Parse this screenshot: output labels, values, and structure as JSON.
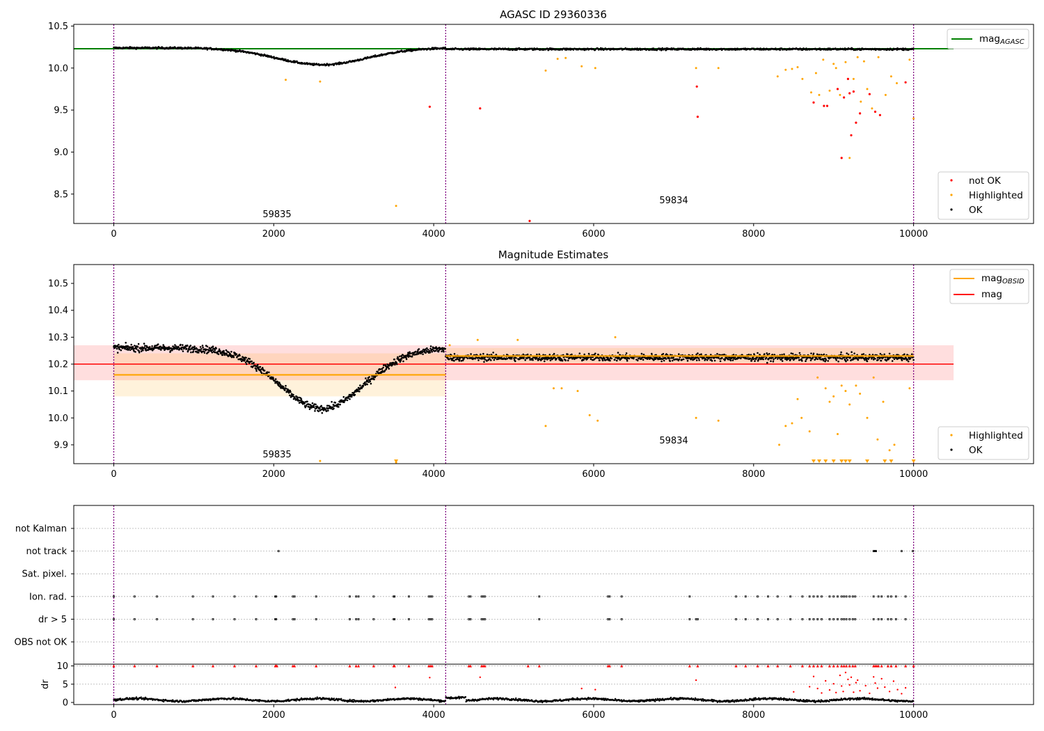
{
  "figure": {
    "colors": {
      "ok": "#000000",
      "highlighted": "#ffa500",
      "not_ok": "#ff0000",
      "mag_agasc": "#008000",
      "mag_obsid": "#ffa500",
      "mag": "#ff0000",
      "divider": "#800080"
    }
  },
  "chart_data": [
    {
      "type": "scatter",
      "title": "AGASC ID 29360336",
      "xlim": [
        -500,
        11500
      ],
      "ylim": [
        8.15,
        10.52
      ],
      "x_ticks": [
        "0",
        "2000",
        "4000",
        "6000",
        "8000",
        "10000"
      ],
      "y_ticks": [
        "8.5",
        "9.0",
        "9.5",
        "10.0",
        "10.5"
      ],
      "obsid_boundaries": [
        0,
        4150,
        10000
      ],
      "obsid_labels": [
        {
          "text": "59835",
          "x": 2070,
          "y": 8.26
        },
        {
          "text": "59834",
          "x": 7070,
          "y": 8.43
        }
      ],
      "lines": [
        {
          "name": "mag",
          "subscript": "AGASC",
          "y": 10.23,
          "x_range": [
            -500,
            10500
          ]
        }
      ],
      "series": [
        {
          "name": "not OK",
          "points": [
            [
              3950,
              9.54
            ],
            [
              4580,
              9.52
            ],
            [
              5200,
              8.18
            ],
            [
              7290,
              9.78
            ],
            [
              7300,
              9.42
            ],
            [
              8750,
              9.59
            ],
            [
              8880,
              9.55
            ],
            [
              8920,
              9.55
            ],
            [
              9050,
              9.75
            ],
            [
              9100,
              8.93
            ],
            [
              9130,
              9.65
            ],
            [
              9180,
              9.87
            ],
            [
              9200,
              9.7
            ],
            [
              9220,
              9.2
            ],
            [
              9250,
              9.72
            ],
            [
              9280,
              9.35
            ],
            [
              9330,
              9.46
            ],
            [
              9450,
              9.69
            ],
            [
              9520,
              9.48
            ],
            [
              9580,
              9.44
            ],
            [
              9900,
              9.83
            ]
          ]
        },
        {
          "name": "Highlighted",
          "points": [
            [
              2150,
              9.86
            ],
            [
              2580,
              9.84
            ],
            [
              3530,
              8.36
            ],
            [
              5400,
              9.97
            ],
            [
              5550,
              10.11
            ],
            [
              5650,
              10.12
            ],
            [
              5850,
              10.02
            ],
            [
              6020,
              10.0
            ],
            [
              7280,
              10.0
            ],
            [
              7560,
              10.0
            ],
            [
              8300,
              9.9
            ],
            [
              8400,
              9.98
            ],
            [
              8480,
              9.99
            ],
            [
              8550,
              10.01
            ],
            [
              8610,
              9.87
            ],
            [
              8720,
              9.71
            ],
            [
              8780,
              9.94
            ],
            [
              8820,
              9.68
            ],
            [
              8870,
              10.1
            ],
            [
              8950,
              9.73
            ],
            [
              9000,
              10.05
            ],
            [
              9030,
              10.0
            ],
            [
              9080,
              9.68
            ],
            [
              9150,
              10.07
            ],
            [
              9200,
              8.93
            ],
            [
              9250,
              9.87
            ],
            [
              9300,
              10.13
            ],
            [
              9340,
              9.6
            ],
            [
              9380,
              10.08
            ],
            [
              9420,
              9.75
            ],
            [
              9480,
              9.52
            ],
            [
              9560,
              10.13
            ],
            [
              9650,
              9.68
            ],
            [
              9720,
              9.9
            ],
            [
              9790,
              9.82
            ],
            [
              9950,
              10.1
            ],
            [
              10000,
              9.4
            ]
          ]
        },
        {
          "name": "OK",
          "model": "agasc"
        }
      ],
      "legend_lines": "upper right",
      "legend_points": "lower right"
    },
    {
      "type": "scatter",
      "title": "Magnitude Estimates",
      "xlim": [
        -500,
        11500
      ],
      "ylim": [
        9.83,
        10.57
      ],
      "x_ticks": [
        "0",
        "2000",
        "4000",
        "6000",
        "8000",
        "10000"
      ],
      "y_ticks": [
        "9.9",
        "10.0",
        "10.1",
        "10.2",
        "10.3",
        "10.4",
        "10.5"
      ],
      "obsid_boundaries": [
        0,
        4150,
        10000
      ],
      "obsid_labels": [
        {
          "text": "59835",
          "x": 2070,
          "y": 9.86
        },
        {
          "text": "59834",
          "x": 7070,
          "y": 9.91
        }
      ],
      "lines": [
        {
          "name": "mag",
          "subscript": "OBSID",
          "segments": [
            {
              "x_range": [
                0,
                4150
              ],
              "y": 10.16,
              "band": [
                10.08,
                10.24
              ]
            },
            {
              "x_range": [
                4150,
                10000
              ],
              "y": 10.23,
              "band": [
                10.2,
                10.26
              ]
            }
          ]
        },
        {
          "name": "mag",
          "y": 10.2,
          "band": [
            10.14,
            10.27
          ],
          "x_range": [
            -500,
            10500
          ]
        }
      ],
      "series": [
        {
          "name": "Highlighted",
          "points": [
            [
              2580,
              9.84
            ],
            [
              3530,
              9.835
            ],
            [
              4200,
              10.27
            ],
            [
              4550,
              10.29
            ],
            [
              5050,
              10.29
            ],
            [
              5400,
              9.97
            ],
            [
              5500,
              10.11
            ],
            [
              5600,
              10.11
            ],
            [
              5800,
              10.1
            ],
            [
              5950,
              10.01
            ],
            [
              6050,
              9.99
            ],
            [
              6270,
              10.3
            ],
            [
              7280,
              10.0
            ],
            [
              7560,
              9.99
            ],
            [
              8320,
              9.9
            ],
            [
              8400,
              9.97
            ],
            [
              8480,
              9.98
            ],
            [
              8550,
              10.07
            ],
            [
              8600,
              10.0
            ],
            [
              8700,
              9.95
            ],
            [
              8800,
              10.15
            ],
            [
              8900,
              10.11
            ],
            [
              8950,
              10.06
            ],
            [
              9000,
              10.08
            ],
            [
              9050,
              9.94
            ],
            [
              9100,
              10.12
            ],
            [
              9150,
              10.1
            ],
            [
              9200,
              10.05
            ],
            [
              9280,
              10.12
            ],
            [
              9330,
              10.09
            ],
            [
              9420,
              10.0
            ],
            [
              9500,
              10.15
            ],
            [
              9550,
              9.92
            ],
            [
              9620,
              10.06
            ],
            [
              9700,
              9.88
            ],
            [
              9760,
              9.9
            ],
            [
              9950,
              10.11
            ]
          ]
        },
        {
          "name": "OK",
          "model": "obsid"
        }
      ],
      "markers_below": [
        3530,
        8750,
        8820,
        8900,
        9000,
        9100,
        9150,
        9200,
        9420,
        9640,
        9720,
        10000
      ],
      "legend_lines": "upper right",
      "legend_points": "lower right"
    },
    {
      "type": "scatter",
      "title": "",
      "xlim": [
        -500,
        11500
      ],
      "categories": [
        "not Kalman",
        "not track",
        "Sat. pixel.",
        "Ion. rad.",
        "dr > 5",
        "OBS not OK"
      ],
      "flags": {
        "not track": [
          2060,
          9500,
          9510,
          9520,
          9530,
          9850,
          9990
        ],
        "Ion. rad.": [
          0,
          260,
          540,
          990,
          1240,
          1510,
          1780,
          2020,
          2030,
          2240,
          2260,
          2530,
          2950,
          3030,
          3060,
          3250,
          3500,
          3510,
          3690,
          3940,
          3960,
          3980,
          4440,
          4460,
          4600,
          4620,
          4640,
          5320,
          6180,
          6200,
          6350,
          7200,
          7780,
          7900,
          8050,
          8180,
          8300,
          8460,
          8610,
          8700,
          8750,
          8800,
          8850,
          8950,
          9000,
          9050,
          9100,
          9130,
          9160,
          9200,
          9240,
          9270,
          9500,
          9560,
          9600,
          9680,
          9720,
          9780,
          9900
        ],
        "dr > 5": [
          0,
          260,
          540,
          990,
          1240,
          1510,
          1780,
          2020,
          2030,
          2240,
          2260,
          2530,
          2950,
          3030,
          3060,
          3250,
          3500,
          3510,
          3690,
          3940,
          3960,
          3980,
          4440,
          4460,
          4600,
          4620,
          4640,
          5320,
          6180,
          6200,
          6350,
          7200,
          7280,
          7300,
          7780,
          7900,
          8050,
          8180,
          8300,
          8460,
          8610,
          8700,
          8750,
          8800,
          8850,
          8950,
          9000,
          9050,
          9100,
          9130,
          9160,
          9200,
          9240,
          9270,
          9500,
          9560,
          9600,
          9680,
          9720,
          9780,
          9900
        ]
      }
    },
    {
      "type": "scatter",
      "title": "",
      "ylabel": "dr",
      "xlim": [
        -500,
        11500
      ],
      "ylim": [
        -0.5,
        10.5
      ],
      "x_ticks": [
        "0",
        "2000",
        "4000",
        "6000",
        "8000",
        "10000"
      ],
      "y_ticks": [
        "0",
        "5",
        "10"
      ],
      "red_at_cap": [
        0,
        260,
        540,
        990,
        1240,
        1510,
        1780,
        2020,
        2030,
        2040,
        2240,
        2260,
        2530,
        2950,
        3030,
        3060,
        3250,
        3500,
        3510,
        3690,
        3940,
        3960,
        3980,
        4440,
        4460,
        4600,
        4620,
        4640,
        5180,
        5320,
        6180,
        6200,
        6350,
        7200,
        7300,
        7780,
        7900,
        8050,
        8180,
        8300,
        8460,
        8610,
        8700,
        8750,
        8800,
        8850,
        8950,
        9000,
        9050,
        9100,
        9130,
        9160,
        9200,
        9240,
        9270,
        9500,
        9520,
        9540,
        9560,
        9600,
        9680,
        9720,
        9780,
        9900,
        10000
      ],
      "red_points": [
        [
          3520,
          4.1
        ],
        [
          3950,
          6.8
        ],
        [
          4580,
          6.9
        ],
        [
          5850,
          3.8
        ],
        [
          6020,
          3.5
        ],
        [
          7280,
          6.1
        ],
        [
          8500,
          2.9
        ],
        [
          8700,
          4.3
        ],
        [
          8750,
          7.1
        ],
        [
          8800,
          3.8
        ],
        [
          8850,
          2.6
        ],
        [
          8900,
          5.9
        ],
        [
          8950,
          3.4
        ],
        [
          9000,
          5.1
        ],
        [
          9030,
          2.7
        ],
        [
          9080,
          7.4
        ],
        [
          9100,
          4.5
        ],
        [
          9120,
          3.0
        ],
        [
          9150,
          8.2
        ],
        [
          9180,
          6.3
        ],
        [
          9200,
          4.8
        ],
        [
          9220,
          6.9
        ],
        [
          9250,
          2.8
        ],
        [
          9280,
          5.4
        ],
        [
          9300,
          6.1
        ],
        [
          9330,
          3.2
        ],
        [
          9400,
          4.6
        ],
        [
          9450,
          2.5
        ],
        [
          9500,
          7.0
        ],
        [
          9520,
          5.3
        ],
        [
          9550,
          3.9
        ],
        [
          9600,
          6.5
        ],
        [
          9640,
          4.2
        ],
        [
          9700,
          3.0
        ],
        [
          9750,
          5.8
        ],
        [
          9800,
          3.5
        ],
        [
          9850,
          2.4
        ],
        [
          9900,
          4.0
        ]
      ]
    }
  ]
}
